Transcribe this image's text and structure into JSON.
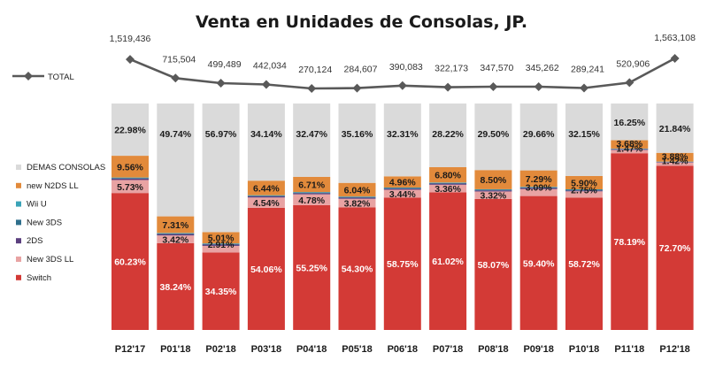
{
  "chart_data": {
    "type": "bar",
    "stacked": true,
    "title": "Venta en Unidades de Consolas, JP.",
    "categories": [
      "P12'17",
      "P01'18",
      "P02'18",
      "P03'18",
      "P04'18",
      "P05'18",
      "P06'18",
      "P07'18",
      "P08'18",
      "P09'18",
      "P10'18",
      "P11'18",
      "P12'18"
    ],
    "series": [
      {
        "name": "Switch",
        "color": "#d33a36",
        "values": [
          60.23,
          38.24,
          34.35,
          54.06,
          55.25,
          54.3,
          58.75,
          61.02,
          58.07,
          59.4,
          58.72,
          78.19,
          72.7
        ],
        "labels": [
          "60.23%",
          "38.24%",
          "34.35%",
          "54.06%",
          "55.25%",
          "54.30%",
          "58.75%",
          "61.02%",
          "58.07%",
          "59.40%",
          "58.72%",
          "78.19%",
          "72.70%"
        ]
      },
      {
        "name": "New 3DS LL",
        "color": "#e8a3a3",
        "values": [
          5.73,
          3.42,
          2.91,
          4.54,
          4.78,
          3.82,
          3.44,
          3.36,
          3.32,
          3.09,
          2.75,
          1.47,
          1.42
        ],
        "labels": [
          "5.73%",
          "3.42%",
          "2.91%",
          "4.54%",
          "4.78%",
          "3.82%",
          "3.44%",
          "3.36%",
          "3.32%",
          "3.09%",
          "2.75%",
          "1.47%",
          "1.42%"
        ]
      },
      {
        "name": "2DS",
        "color": "#5b3f7e",
        "values": [
          0.6,
          0.6,
          0.6,
          0.5,
          0.5,
          0.5,
          0.5,
          0.5,
          0.5,
          0.5,
          0.4,
          0.3,
          0.2
        ],
        "labels": [
          "",
          "",
          "",
          "",
          "",
          "",
          "",
          "",
          "",
          "",
          "",
          "",
          ""
        ]
      },
      {
        "name": "New 3DS",
        "color": "#2f6f8c",
        "values": [
          0.3,
          0.3,
          0.3,
          0.3,
          0.3,
          0.3,
          0.3,
          0.3,
          0.3,
          0.3,
          0.3,
          0.2,
          0.1
        ],
        "labels": [
          "",
          "",
          "",
          "",
          "",
          "",
          "",
          "",
          "",
          "",
          "",
          "",
          ""
        ]
      },
      {
        "name": "Wii U",
        "color": "#3aa3b8",
        "values": [
          0.2,
          0.2,
          0.2,
          0.2,
          0.2,
          0.2,
          0.2,
          0.2,
          0.2,
          0.2,
          0.2,
          0.1,
          0.1
        ],
        "labels": [
          "",
          "",
          "",
          "",
          "",
          "",
          "",
          "",
          "",
          "",
          "",
          "",
          ""
        ]
      },
      {
        "name": "new N2DS LL",
        "color": "#e28a3b",
        "values": [
          9.56,
          7.31,
          5.01,
          6.44,
          6.71,
          6.04,
          4.96,
          6.8,
          8.5,
          7.29,
          5.9,
          3.68,
          3.88
        ],
        "labels": [
          "9.56%",
          "7.31%",
          "5.01%",
          "6.44%",
          "6.71%",
          "6.04%",
          "4.96%",
          "6.80%",
          "8.50%",
          "7.29%",
          "5.90%",
          "3.68%",
          "3.88%"
        ]
      },
      {
        "name": "DEMAS CONSOLAS",
        "color": "#dadada",
        "values": [
          22.98,
          49.74,
          56.97,
          34.14,
          32.47,
          35.16,
          32.31,
          28.22,
          29.5,
          29.66,
          32.15,
          16.25,
          21.84
        ],
        "labels": [
          "22.98%",
          "49.74%",
          "56.97%",
          "34.14%",
          "32.47%",
          "35.16%",
          "32.31%",
          "28.22%",
          "29.50%",
          "29.66%",
          "32.15%",
          "16.25%",
          "21.84%"
        ]
      }
    ],
    "total": {
      "name": "TOTAL",
      "color": "#595959",
      "values": [
        1519436,
        715504,
        499489,
        442034,
        270124,
        284607,
        390083,
        322173,
        347570,
        345262,
        289241,
        520906,
        1563108
      ],
      "labels": [
        "1,519,436",
        "715,504",
        "499,489",
        "442,034",
        "270,124",
        "284,607",
        "390,083",
        "322,173",
        "347,570",
        "345,262",
        "289,241",
        "520,906",
        "1,563,108"
      ]
    },
    "legend_order": [
      "DEMAS CONSOLAS",
      "new N2DS LL",
      "Wii U",
      "New 3DS",
      "2DS",
      "New 3DS LL",
      "Switch"
    ],
    "legend_position": "left",
    "grid": false
  }
}
